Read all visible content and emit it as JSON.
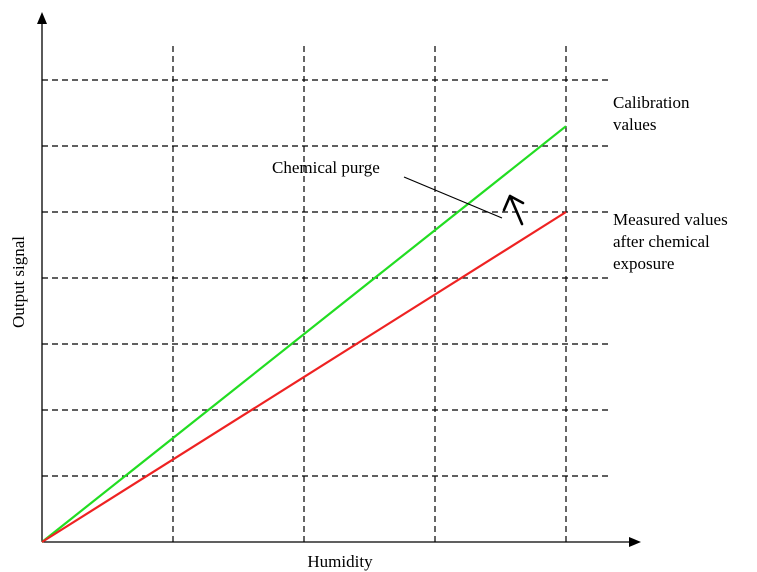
{
  "chart_data": {
    "type": "line",
    "xlabel": "Humidity",
    "ylabel": "Output signal",
    "xlim": [
      0,
      4
    ],
    "ylim": [
      0,
      7
    ],
    "grid": true,
    "series": [
      {
        "name": "Calibration values",
        "color": "#22dd22",
        "x": [
          0,
          4
        ],
        "y": [
          0,
          6.3
        ]
      },
      {
        "name": "Measured values after chemical exposure",
        "color": "#ee2222",
        "x": [
          0,
          4
        ],
        "y": [
          0,
          5
        ]
      }
    ],
    "annotations": [
      {
        "text": "Calibration values",
        "lines": [
          "Calibration",
          "values"
        ],
        "series": 0
      },
      {
        "text": "Measured values after chemical exposure",
        "lines": [
          "Measured values",
          "after chemical",
          "exposure"
        ],
        "series": 1
      },
      {
        "text": "Chemical purge",
        "arrow_from_series": 1,
        "arrow_to_series": 0
      }
    ]
  }
}
